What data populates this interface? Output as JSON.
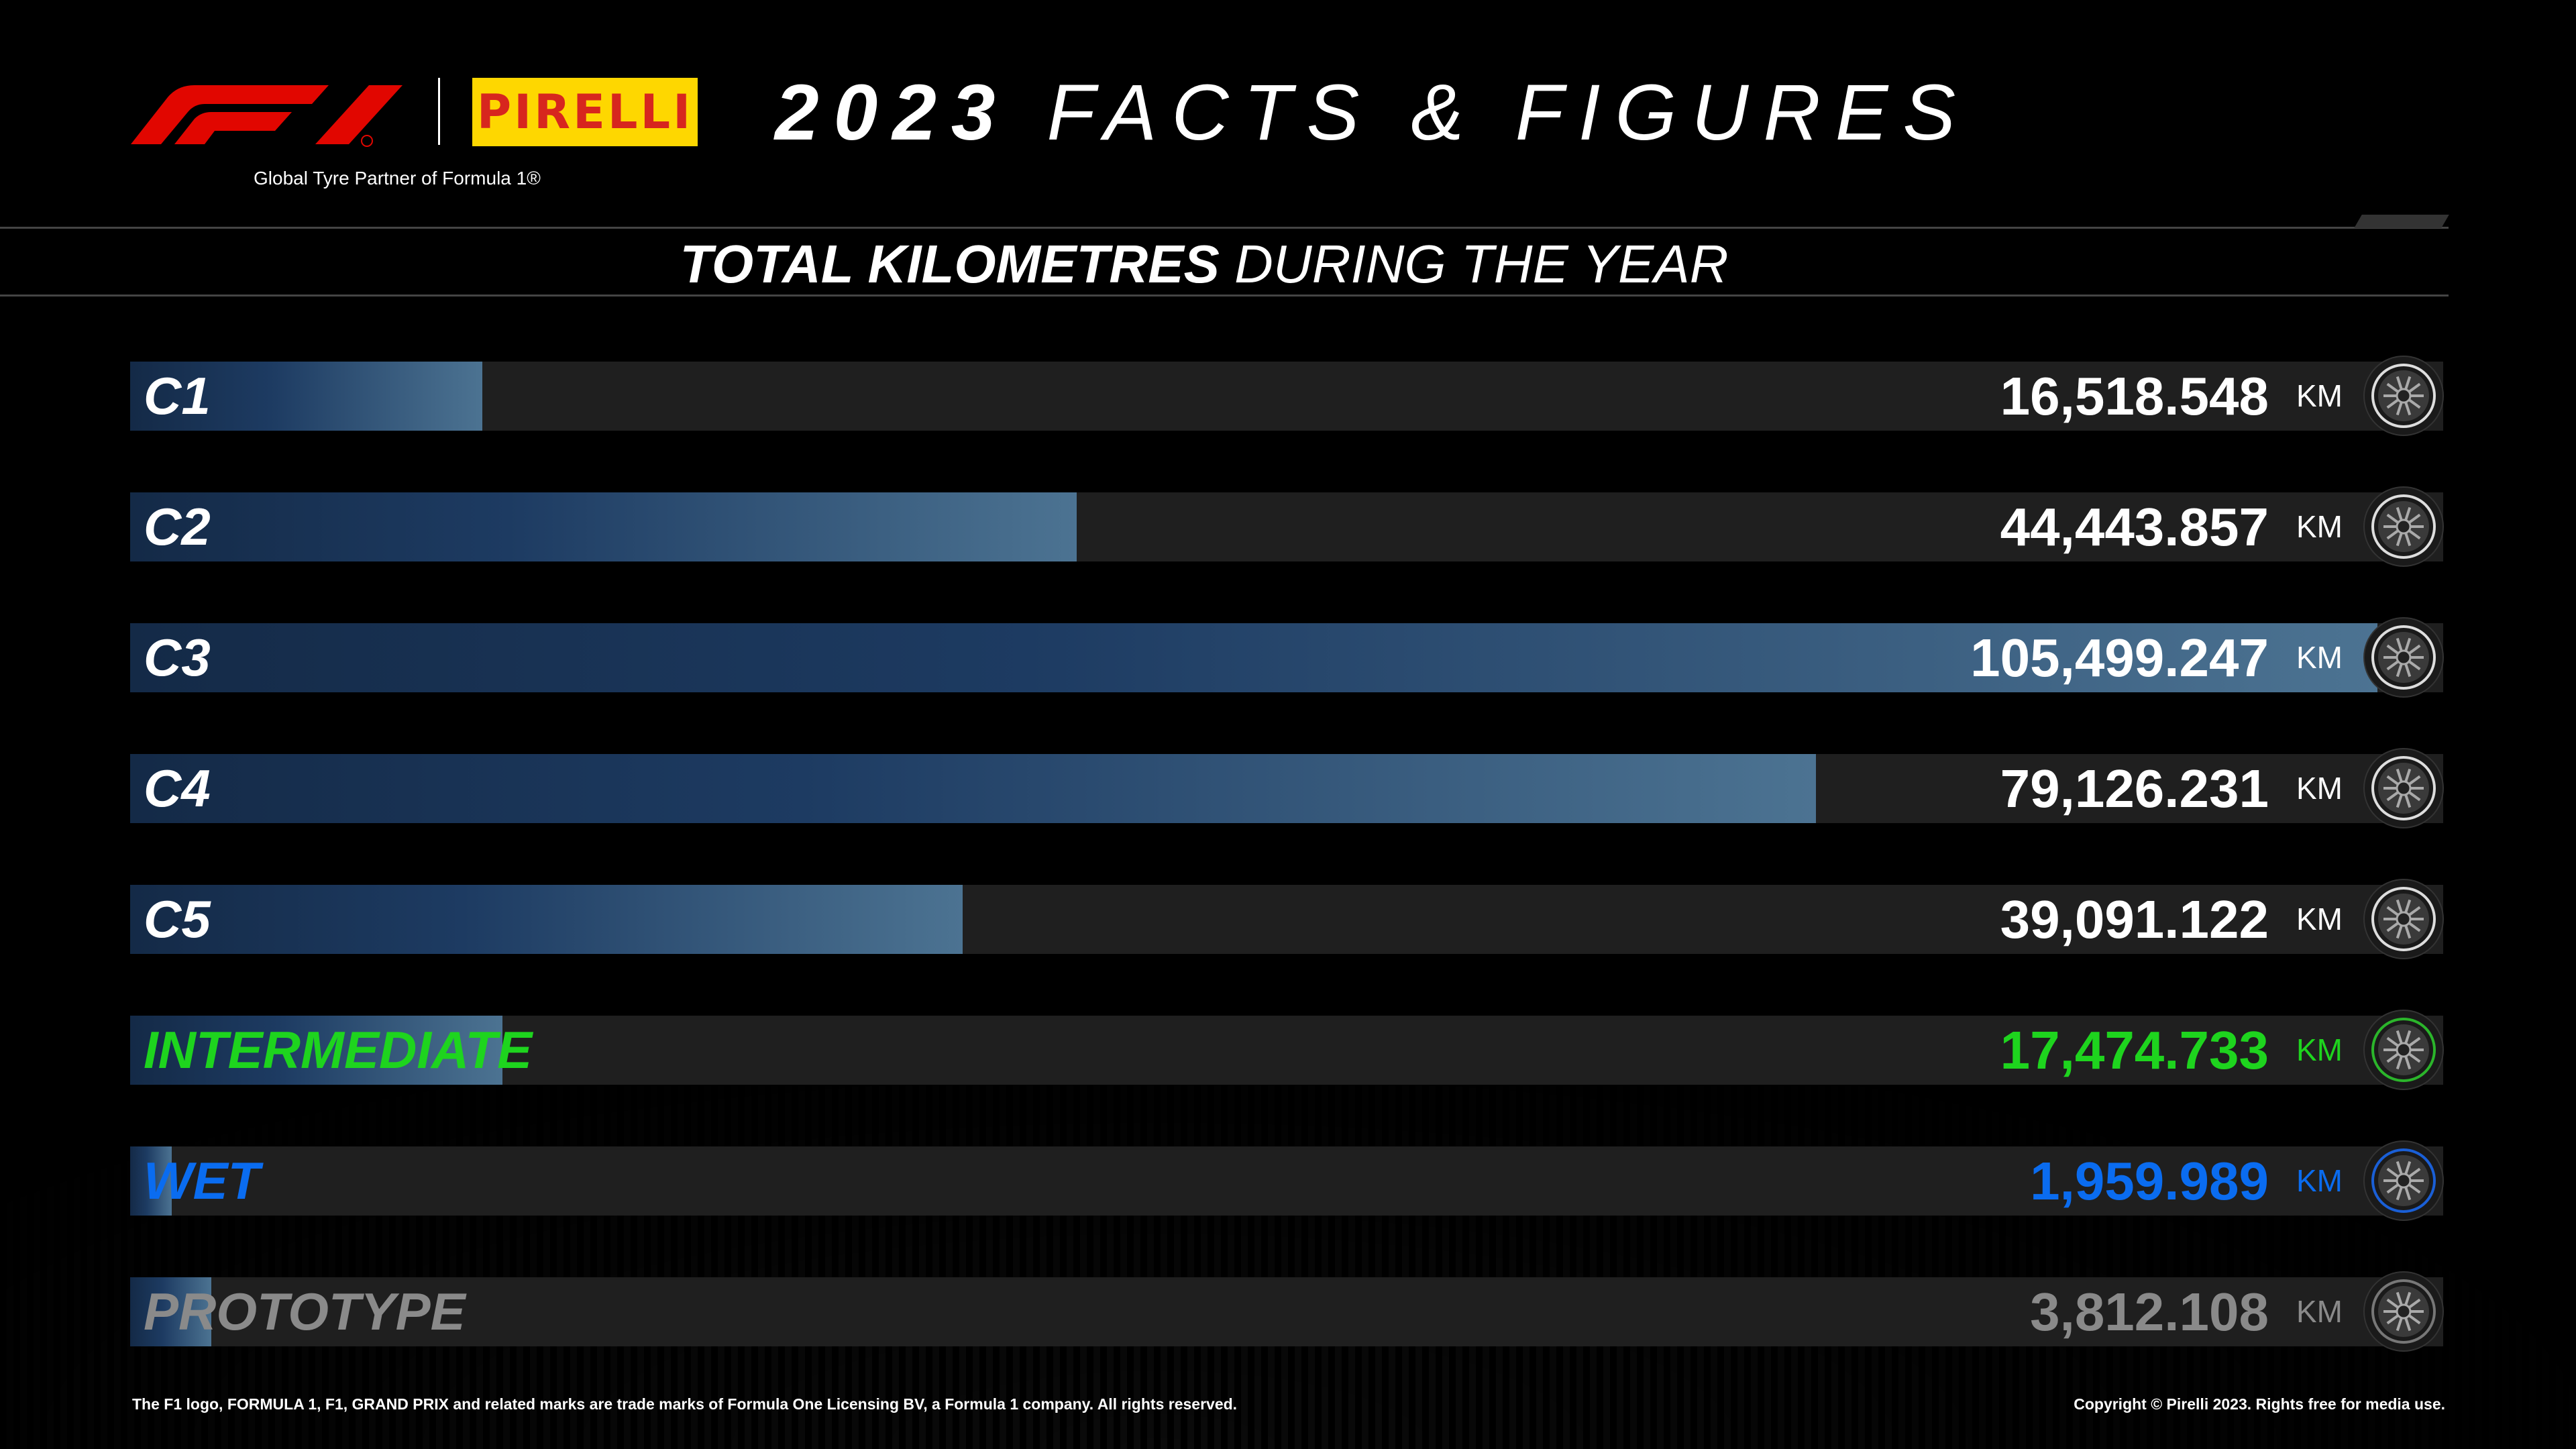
{
  "header": {
    "tagline": "Global Tyre Partner of Formula 1®",
    "title_year": "2023",
    "title_rest": "FACTS & FIGURES",
    "logo_text": "PIRELLI",
    "f1_logo": "F1"
  },
  "subtitle": {
    "bold": "TOTAL KILOMETRES",
    "rest": "DURING THE YEAR"
  },
  "chart_data": {
    "type": "bar",
    "orientation": "horizontal",
    "title": "TOTAL KILOMETRES DURING THE YEAR",
    "unit": "KM",
    "categories": [
      "C1",
      "C2",
      "C3",
      "C4",
      "C5",
      "INTERMEDIATE",
      "WET",
      "PROTOTYPE"
    ],
    "values": [
      16518.548,
      44443.857,
      105499.247,
      79126.231,
      39091.122,
      17474.733,
      1959.989,
      3812.108
    ],
    "labels": [
      "16,518.548",
      "44,443.857",
      "105,499.247",
      "79,126.231",
      "39,091.122",
      "17,474.733",
      "1,959.989",
      "3,812.108"
    ],
    "colors": [
      "#ffffff",
      "#ffffff",
      "#ffffff",
      "#ffffff",
      "#ffffff",
      "#1ed41e",
      "#0a6cf0",
      "#8a8a8a"
    ],
    "stripe_colors": [
      "#dddddd",
      "#dddddd",
      "#dddddd",
      "#dddddd",
      "#dddddd",
      "#2bb52b",
      "#1a5fd6",
      "#777777"
    ],
    "xlim": [
      0,
      105499.247
    ]
  },
  "footer": {
    "left": "The F1 logo, FORMULA 1, F1, GRAND PRIX and related marks are trade marks of Formula One Licensing BV, a Formula 1 company. All rights reserved.",
    "right": "Copyright © Pirelli 2023. Rights free for media use."
  }
}
